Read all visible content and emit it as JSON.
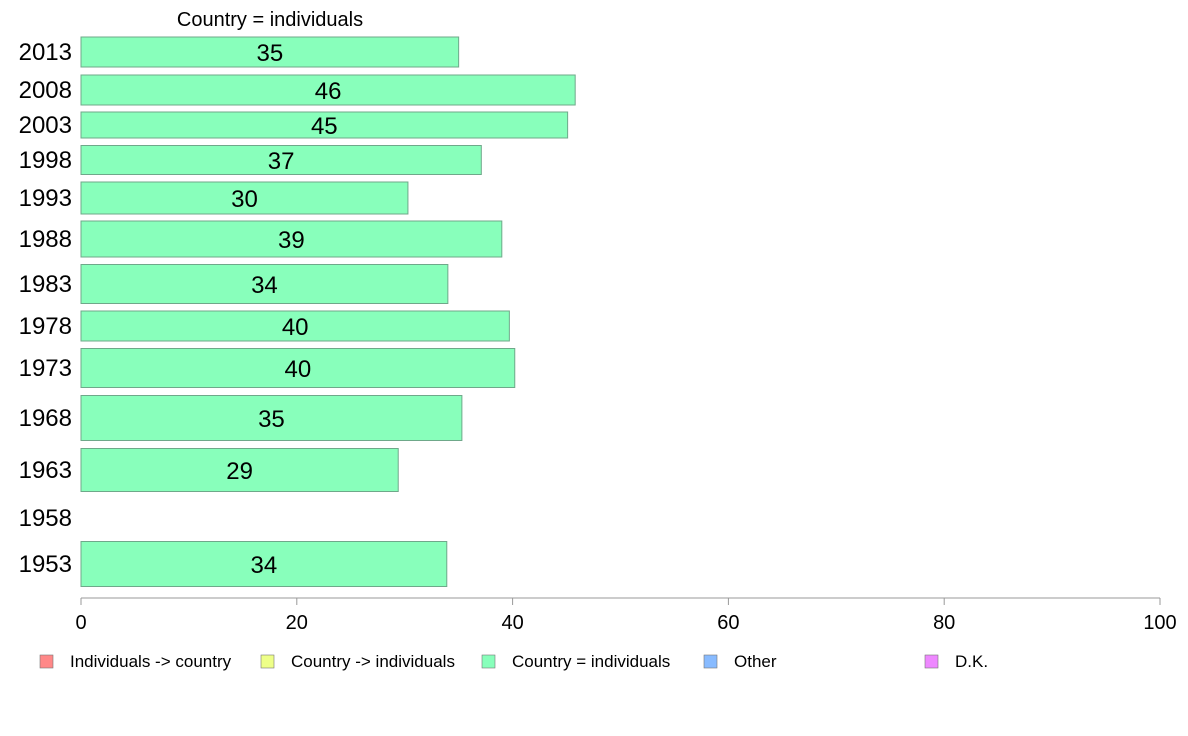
{
  "chart_data": {
    "type": "bar",
    "orientation": "horizontal",
    "title": "Country = individuals",
    "xlabel": "",
    "ylabel": "",
    "xlim": [
      0,
      100
    ],
    "x_ticks": [
      0,
      20,
      40,
      60,
      80,
      100
    ],
    "categories": [
      "2013",
      "2008",
      "2003",
      "1998",
      "1993",
      "1988",
      "1983",
      "1978",
      "1973",
      "1968",
      "1963",
      "1958",
      "1953"
    ],
    "series": [
      {
        "name": "Country = individuals",
        "color": "#88ffbb",
        "values": [
          35,
          46,
          45,
          37,
          30,
          39,
          34,
          40,
          40,
          35,
          29,
          null,
          34
        ],
        "exact_values": [
          35.0,
          45.8,
          45.1,
          37.1,
          30.3,
          39.0,
          34.0,
          39.7,
          40.2,
          35.3,
          29.4,
          null,
          33.9
        ]
      }
    ],
    "legend": {
      "placement": "bottom",
      "entries": [
        {
          "label": "Individuals -> country",
          "color": "#ff8888"
        },
        {
          "label": "Country -> individuals",
          "color": "#eeff88"
        },
        {
          "label": "Country = individuals",
          "color": "#88ffbb"
        },
        {
          "label": "Other",
          "color": "#88bbff"
        },
        {
          "label": "D.K.",
          "color": "#ee88ff"
        }
      ]
    },
    "grid": false
  }
}
